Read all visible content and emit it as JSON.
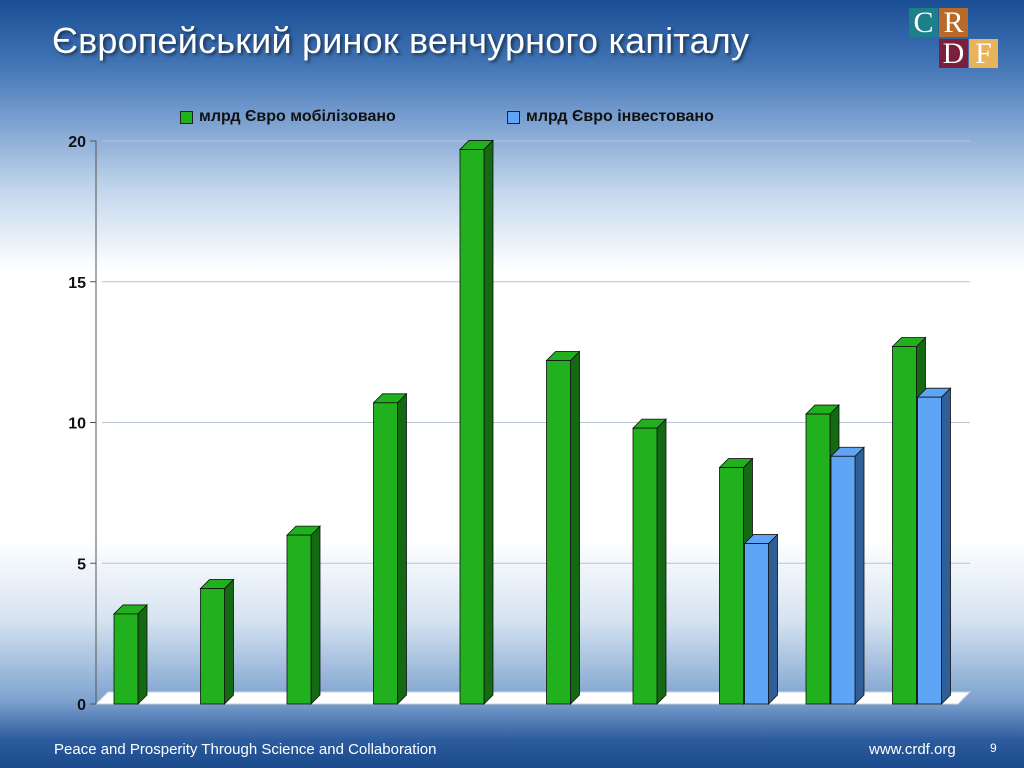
{
  "slide": {
    "title": "Європейський ринок венчурного капіталу",
    "footer_left": "Peace and Prosperity Through Science and Collaboration",
    "footer_right": "www.crdf.org",
    "page_number": "9"
  },
  "logo": {
    "letters": [
      "C",
      "R",
      "D",
      "F"
    ],
    "colors": [
      "#1d7f8a",
      "#b86a2a",
      "#7a1f3c",
      "#e8b35a"
    ]
  },
  "colors": {
    "mobilized": "#22b11e",
    "mobilized_dark": "#146a12",
    "invested": "#5ea6f5",
    "invested_dark": "#2f5f96"
  },
  "chart_data": {
    "type": "bar",
    "title": "",
    "xlabel": "",
    "ylabel": "",
    "ylim": [
      0,
      20
    ],
    "yticks": [
      0,
      5,
      10,
      15,
      20
    ],
    "grid": true,
    "legend_position": "top",
    "categories": [
      "",
      "",
      "",
      "",
      "",
      "",
      "",
      "",
      "",
      ""
    ],
    "series": [
      {
        "name": "млрд Євро мобілізовано",
        "values": [
          3.2,
          4.1,
          6.0,
          10.7,
          19.7,
          12.2,
          9.8,
          8.4,
          10.3,
          12.7
        ]
      },
      {
        "name": "млрд Євро інвестовано",
        "values": [
          null,
          null,
          null,
          null,
          null,
          null,
          null,
          5.7,
          8.8,
          10.9
        ]
      }
    ]
  }
}
